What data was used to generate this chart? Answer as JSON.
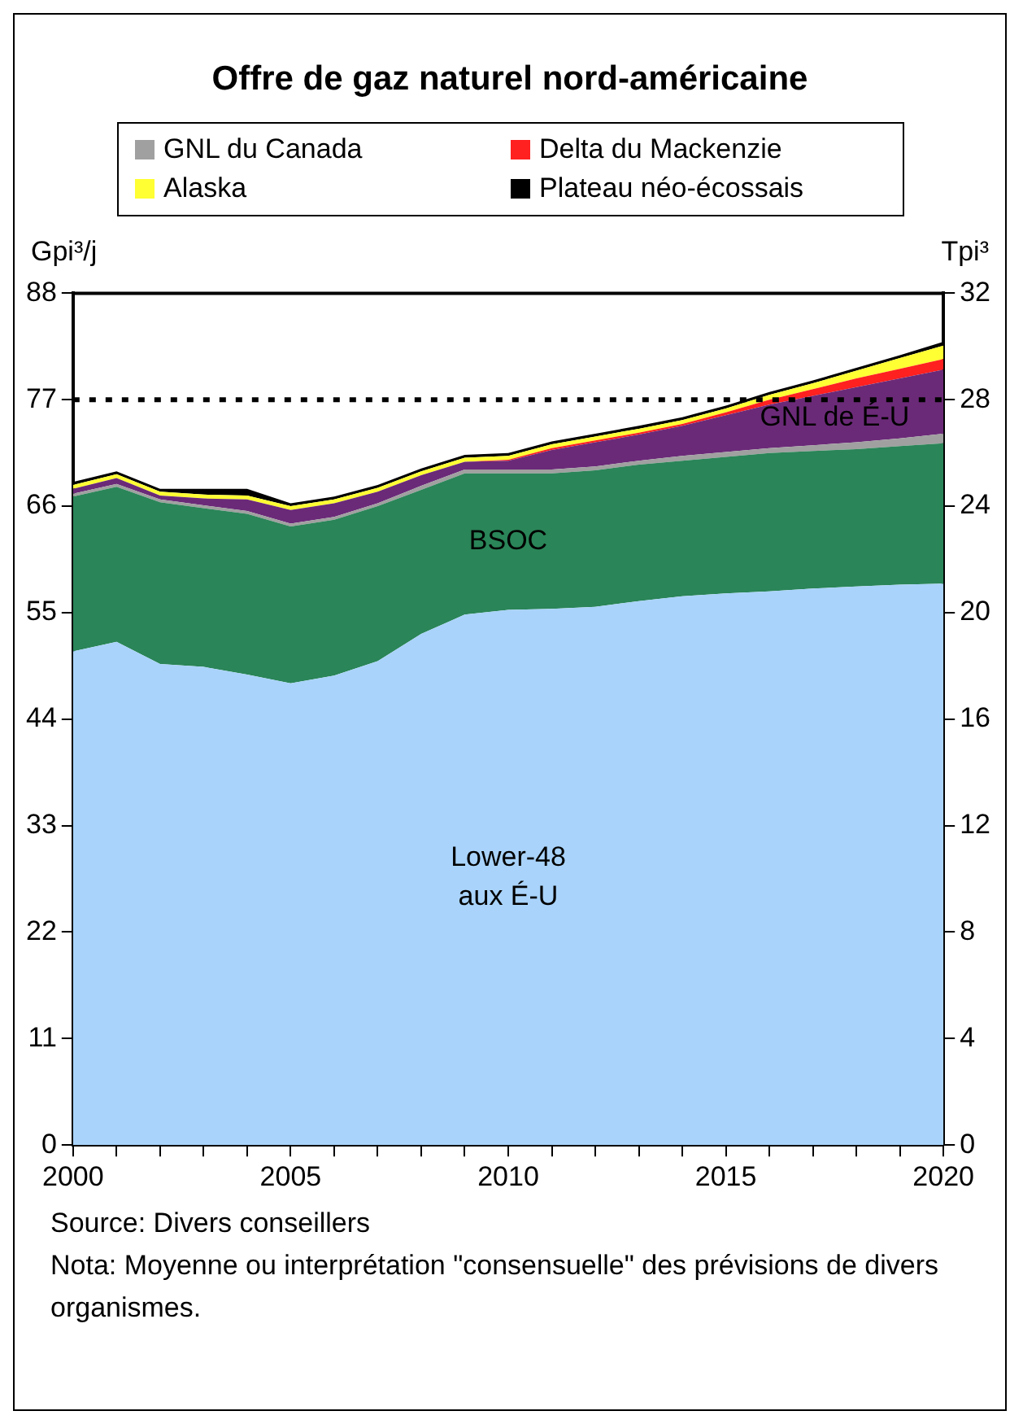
{
  "chart_data": {
    "type": "area",
    "title": "Offre de gaz naturel nord-américaine",
    "ylabel": "Gpi³/j",
    "y2label": "Tpi³",
    "x": [
      2000,
      2001,
      2002,
      2003,
      2004,
      2005,
      2006,
      2007,
      2008,
      2009,
      2010,
      2011,
      2012,
      2013,
      2014,
      2015,
      2016,
      2017,
      2018,
      2019,
      2020
    ],
    "stacked": true,
    "legend": "top",
    "grid": false,
    "series": [
      {
        "name": "Lower-48\naux É-U",
        "color": "#a9d3fa",
        "values": [
          51,
          52,
          49.7,
          49.4,
          48.6,
          47.7,
          48.5,
          50,
          52.8,
          54.8,
          55.3,
          55.4,
          55.6,
          56.2,
          56.7,
          57,
          57.2,
          57.5,
          57.7,
          57.9,
          58
        ]
      },
      {
        "name": "BSOC",
        "color": "#2a8558",
        "values": [
          16,
          16,
          16.7,
          16.4,
          16.6,
          16.2,
          16.1,
          16,
          14.9,
          14.6,
          14.1,
          14,
          14.1,
          14.1,
          14,
          14.1,
          14.3,
          14.2,
          14.2,
          14.3,
          14.5
        ]
      },
      {
        "name": "GNL du Canada",
        "color": "#a0a0a0",
        "values": [
          0.3,
          0.3,
          0.3,
          0.3,
          0.3,
          0.3,
          0.3,
          0.3,
          0.4,
          0.4,
          0.4,
          0.4,
          0.4,
          0.4,
          0.5,
          0.5,
          0.5,
          0.6,
          0.7,
          0.8,
          1.0
        ]
      },
      {
        "name": "GNL de É-U",
        "color": "#6b2a78",
        "values": [
          0.5,
          0.6,
          0.4,
          0.7,
          1.2,
          1.4,
          1.4,
          1.2,
          1.1,
          0.8,
          0.9,
          2.0,
          2.5,
          2.7,
          3.1,
          3.8,
          4.5,
          5.1,
          5.7,
          6.2,
          6.6
        ]
      },
      {
        "name": "Delta du Mackenzie",
        "color": "#ff2020",
        "values": [
          0,
          0,
          0,
          0,
          0,
          0,
          0,
          0,
          0,
          0,
          0.1,
          0.2,
          0.2,
          0.2,
          0.2,
          0.3,
          0.5,
          0.7,
          0.9,
          1.0,
          1.1
        ]
      },
      {
        "name": "Alaska",
        "color": "#ffff33",
        "values": [
          0.4,
          0.4,
          0.4,
          0.4,
          0.4,
          0.4,
          0.4,
          0.4,
          0.4,
          0.4,
          0.4,
          0.4,
          0.4,
          0.4,
          0.4,
          0.4,
          0.5,
          0.6,
          0.8,
          1.1,
          1.4
        ]
      },
      {
        "name": "Plateau néo-écossais",
        "color": "#000000",
        "values": [
          0.3,
          0.3,
          0.3,
          0.6,
          0.7,
          0.3,
          0.3,
          0.3,
          0.3,
          0.3,
          0.3,
          0.3,
          0.3,
          0.3,
          0.3,
          0.3,
          0.3,
          0.3,
          0.3,
          0.3,
          0.4
        ]
      }
    ],
    "xlim": [
      2000,
      2020
    ],
    "xticks": [
      2000,
      {
        "value": 2001,
        "label": null
      },
      {
        "value": 2002,
        "label": null
      },
      {
        "value": 2003,
        "label": null
      },
      {
        "value": 2004,
        "label": null
      },
      2005,
      {
        "value": 2006,
        "label": null
      },
      {
        "value": 2007,
        "label": null
      },
      {
        "value": 2008,
        "label": null
      },
      {
        "value": 2009,
        "label": null
      },
      2010,
      {
        "value": 2011,
        "label": null
      },
      {
        "value": 2012,
        "label": null
      },
      {
        "value": 2013,
        "label": null
      },
      {
        "value": 2014,
        "label": null
      },
      2015,
      {
        "value": 2016,
        "label": null
      },
      {
        "value": 2017,
        "label": null
      },
      {
        "value": 2018,
        "label": null
      },
      {
        "value": 2019,
        "label": null
      },
      2020
    ],
    "ylim": [
      0,
      88
    ],
    "yticks": [
      0,
      11,
      22,
      33,
      44,
      55,
      66,
      77,
      88
    ],
    "y2lim": [
      0,
      32
    ],
    "y2ticks": [
      0,
      4,
      8,
      12,
      16,
      20,
      24,
      28,
      32
    ],
    "ref_lines": [
      {
        "axis": "y",
        "value": 77,
        "color": "#000000",
        "line_style": "dotted"
      }
    ],
    "annotations": [
      "Source: Divers conseillers",
      "Nota: Moyenne ou interprétation \"consensuelle\" des prévisions de divers organismes."
    ]
  }
}
